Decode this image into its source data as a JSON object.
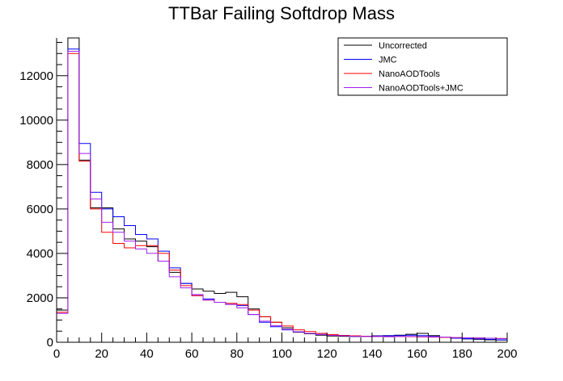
{
  "chart_data": {
    "type": "line",
    "title": "TTBar Failing Softdrop Mass",
    "xlabel": "",
    "ylabel": "",
    "xlim": [
      0,
      200
    ],
    "ylim": [
      0,
      13700
    ],
    "bin_width": 5,
    "x_ticks": [
      0,
      20,
      40,
      60,
      80,
      100,
      120,
      140,
      160,
      180,
      200
    ],
    "y_ticks": [
      0,
      2000,
      4000,
      6000,
      8000,
      10000,
      12000
    ],
    "grid": false,
    "legend": {
      "position": "top-right"
    },
    "series": [
      {
        "name": "Uncorrected",
        "color": "#000000",
        "values": [
          1450,
          13700,
          8200,
          6050,
          6050,
          5100,
          4650,
          4550,
          4300,
          3650,
          3150,
          2650,
          2400,
          2300,
          2200,
          2250,
          2050,
          1500,
          1150,
          900,
          650,
          450,
          380,
          320,
          280,
          270,
          260,
          270,
          290,
          300,
          320,
          360,
          400,
          300,
          220,
          200,
          150,
          130,
          110,
          100
        ]
      },
      {
        "name": "JMC",
        "color": "#0000ff",
        "values": [
          2000,
          13200,
          8950,
          6750,
          6000,
          5650,
          5250,
          4850,
          4650,
          4100,
          3350,
          2650,
          2100,
          1950,
          1800,
          1750,
          1650,
          1250,
          900,
          700,
          560,
          470,
          400,
          350,
          310,
          290,
          270,
          270,
          280,
          290,
          300,
          320,
          300,
          260,
          220,
          180,
          160,
          150,
          130,
          110
        ]
      },
      {
        "name": "NanoAODTools",
        "color": "#ff0000",
        "values": [
          1350,
          13000,
          8150,
          6000,
          4950,
          4450,
          4250,
          4350,
          4350,
          4000,
          3250,
          2550,
          2100,
          1900,
          1800,
          1750,
          1700,
          1450,
          1150,
          900,
          730,
          560,
          480,
          400,
          350,
          310,
          290,
          270,
          260,
          250,
          260,
          250,
          240,
          230,
          220,
          210,
          200,
          190,
          180,
          170
        ]
      },
      {
        "name": "NanoAODTools+JMC",
        "color": "#a020f0",
        "values": [
          1300,
          13100,
          8500,
          6450,
          5400,
          4950,
          4550,
          4200,
          4000,
          3650,
          2950,
          2450,
          2150,
          1900,
          1800,
          1700,
          1550,
          1250,
          950,
          750,
          580,
          470,
          400,
          350,
          310,
          290,
          270,
          260,
          260,
          250,
          260,
          260,
          250,
          240,
          230,
          210,
          200,
          190,
          180,
          170
        ]
      }
    ]
  }
}
